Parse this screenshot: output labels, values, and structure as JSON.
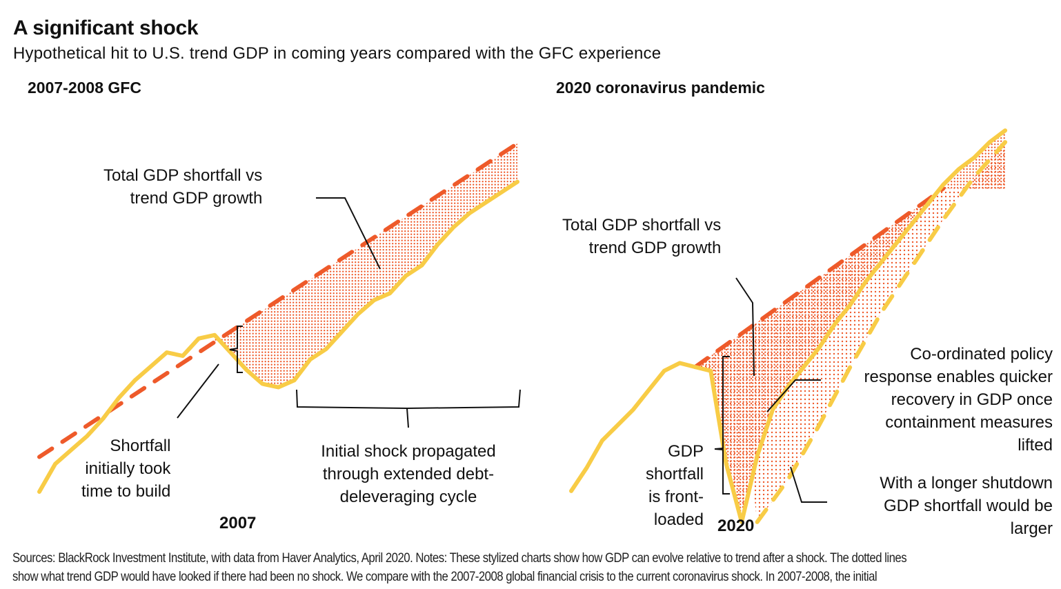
{
  "header": {
    "title": "A significant shock",
    "subtitle": "Hypothetical hit to U.S. trend GDP in coming years compared with the GFC experience"
  },
  "colors": {
    "trend": "#EE5A2A",
    "gdp": "#F8CC46",
    "shortfall_fill": "#EE5A2A",
    "annotation_line": "#111111"
  },
  "chart_data": [
    {
      "type": "line",
      "title": "2007-2008 GFC",
      "xlabel": "2007",
      "stylized": true,
      "x_domain": [
        0,
        30
      ],
      "y_domain": [
        0,
        100
      ],
      "series": [
        {
          "name": "Trend GDP (no shock)",
          "style": "dashed",
          "color": "#EE5A2A",
          "x": [
            0,
            30
          ],
          "y": [
            10,
            100
          ]
        },
        {
          "name": "Actual GDP",
          "style": "solid",
          "color": "#F8CC46",
          "x": [
            0,
            1,
            2,
            3,
            4,
            5,
            6,
            7,
            8,
            9,
            10,
            11,
            12,
            13,
            14,
            15,
            16,
            17,
            18,
            19,
            20,
            21,
            22,
            23,
            24,
            25,
            26,
            27,
            28,
            29,
            30
          ],
          "y": [
            0,
            8,
            12,
            16,
            21,
            27,
            32,
            36,
            40,
            39,
            44,
            45,
            40,
            35,
            31,
            30,
            32,
            38,
            41,
            46,
            51,
            55,
            57,
            62,
            65,
            71,
            76,
            80,
            83,
            86,
            89
          ]
        }
      ],
      "shaded_region": {
        "name": "Total GDP shortfall",
        "from_x": 11,
        "to_x": 30,
        "between": [
          "Trend GDP (no shock)",
          "Actual GDP"
        ]
      },
      "annotations": [
        {
          "id": "total-shortfall",
          "text": [
            "Total GDP shortfall vs",
            "trend GDP growth"
          ]
        },
        {
          "id": "initial-build",
          "text": [
            "Shortfall",
            "initially took",
            "time to build"
          ]
        },
        {
          "id": "propagated",
          "text": [
            "Initial shock propagated",
            "through extended debt-",
            "deleveraging cycle"
          ]
        }
      ]
    },
    {
      "type": "line",
      "title": "2020 coronavirus pandemic",
      "xlabel": "2020",
      "stylized": true,
      "x_domain": [
        0,
        30
      ],
      "y_domain": [
        0,
        100
      ],
      "series": [
        {
          "name": "Trend GDP (no shock)",
          "style": "dashed",
          "color": "#EE5A2A",
          "x": [
            8,
            24
          ],
          "y": [
            37,
            83
          ]
        },
        {
          "name": "Actual GDP (co-ordinated policy response)",
          "style": "solid",
          "color": "#F8CC46",
          "x": [
            0,
            1,
            2,
            3,
            4,
            5,
            6,
            7,
            8,
            9,
            10,
            11,
            12,
            13,
            14,
            15,
            16,
            17,
            18,
            19,
            20,
            21,
            22,
            23,
            24,
            25,
            26,
            27,
            28
          ],
          "y": [
            5,
            11,
            18,
            22,
            26,
            31,
            36,
            38,
            37,
            36,
            12,
            -3,
            14,
            26,
            32,
            37,
            42,
            48,
            53,
            59,
            64,
            69,
            74,
            79,
            84,
            88,
            91,
            95,
            98
          ]
        },
        {
          "name": "Longer shutdown scenario",
          "style": "dashed",
          "color": "#F8CC46",
          "x": [
            12,
            14,
            16,
            18,
            20,
            22,
            24,
            26,
            28
          ],
          "y": [
            -3,
            8,
            22,
            37,
            51,
            63,
            75,
            86,
            95
          ]
        }
      ],
      "shaded_region": {
        "name": "Total GDP shortfall",
        "from_x": 8,
        "to_x": 28,
        "between": [
          "Trend GDP (no shock)",
          "Longer shutdown scenario"
        ]
      },
      "annotations": [
        {
          "id": "total-shortfall",
          "text": [
            "Total GDP shortfall vs",
            "trend GDP growth"
          ]
        },
        {
          "id": "front-loaded",
          "text": [
            "GDP",
            "shortfall",
            "is front-",
            "loaded"
          ]
        },
        {
          "id": "policy-response",
          "text": [
            "Co-ordinated policy",
            "response enables quicker",
            "recovery in GDP once",
            "containment measures",
            "lifted"
          ]
        },
        {
          "id": "longer-shutdown",
          "text": [
            "With a longer shutdown",
            "GDP shortfall would be",
            "larger"
          ]
        }
      ]
    }
  ],
  "footer": {
    "line1": "Sources: BlackRock Investment Institute, with data from Haver Analytics, April 2020.  Notes: These stylized charts show how GDP can evolve relative to trend after a shock. The dotted lines",
    "line2": "show what trend GDP would have looked if there had been no shock. We compare with the 2007-2008 global financial crisis to the current coronavirus shock. In 2007-2008, the initial"
  }
}
